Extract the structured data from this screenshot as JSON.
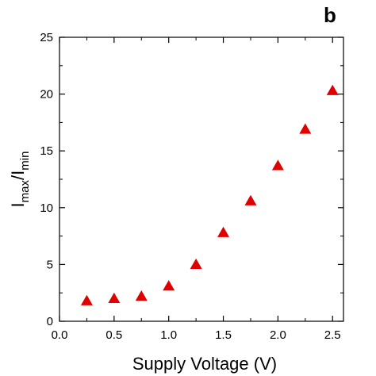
{
  "chart_data": {
    "type": "scatter",
    "panel_label": "b",
    "title": "",
    "xlabel": "Supply Voltage (V)",
    "ylabel": {
      "main": "I",
      "sub1": "max",
      "sep": "/I",
      "sub2": "min"
    },
    "xlim": [
      0.0,
      2.6
    ],
    "ylim": [
      0,
      25
    ],
    "x_ticks": [
      0.0,
      0.5,
      1.0,
      1.5,
      2.0,
      2.5
    ],
    "x_tick_labels": [
      "0.0",
      "0.5",
      "1.0",
      "1.5",
      "2.0",
      "2.5"
    ],
    "y_ticks": [
      0,
      5,
      10,
      15,
      20,
      25
    ],
    "y_tick_labels": [
      "0",
      "5",
      "10",
      "15",
      "20",
      "25"
    ],
    "grid": false,
    "legend": "none",
    "marker": "triangle-up",
    "marker_color": "#e00000",
    "series": [
      {
        "x": [
          0.25,
          0.5,
          0.75,
          1.0,
          1.25,
          1.5,
          1.75,
          2.0,
          2.25,
          2.5
        ],
        "y": [
          1.8,
          2.0,
          2.2,
          3.1,
          5.0,
          7.8,
          10.6,
          13.7,
          16.9,
          20.3
        ]
      }
    ]
  }
}
